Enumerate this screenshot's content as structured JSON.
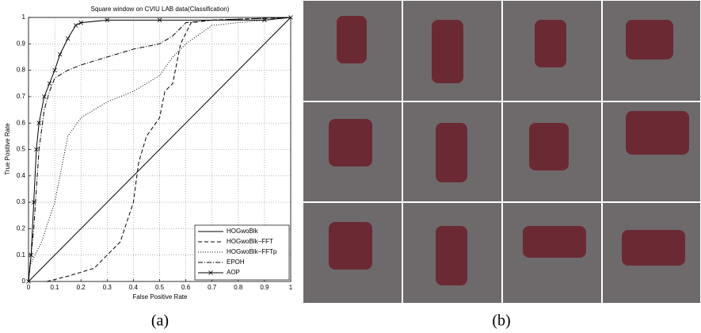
{
  "chart_data": {
    "type": "line",
    "title": "Square window on CVIU LAB data(Classification)",
    "x_label": "False Positive Rate",
    "y_label": "True Positive Rate",
    "xlim": [
      0,
      1
    ],
    "ylim": [
      0,
      1
    ],
    "xticks": [
      0,
      0.1,
      0.2,
      0.3,
      0.4,
      0.5,
      0.6,
      0.7,
      0.8,
      0.9,
      1
    ],
    "yticks": [
      0,
      0.1,
      0.2,
      0.3,
      0.4,
      0.5,
      0.6,
      0.7,
      0.8,
      0.9,
      1
    ],
    "grid": true,
    "legend": "lower right",
    "series": [
      {
        "name": "HOGwoBlk",
        "color": "#000000",
        "dash": "none",
        "marker": "none",
        "x": [
          0,
          1
        ],
        "values": [
          0,
          1
        ]
      },
      {
        "name": "HOGwoBlk−FFT",
        "color": "#000000",
        "dash": "5,3",
        "marker": "none",
        "x": [
          0.07,
          0.15,
          0.25,
          0.35,
          0.4,
          0.42,
          0.45,
          0.5,
          0.52,
          0.55,
          0.58,
          0.62,
          0.7,
          1
        ],
        "values": [
          0,
          0.02,
          0.05,
          0.15,
          0.3,
          0.45,
          0.55,
          0.62,
          0.72,
          0.75,
          0.9,
          0.98,
          0.99,
          1
        ]
      },
      {
        "name": "HOGwoBlk−FFTp",
        "color": "#000000",
        "dash": "1,2",
        "marker": "none",
        "x": [
          0,
          0.05,
          0.1,
          0.12,
          0.15,
          0.2,
          0.3,
          0.4,
          0.5,
          0.55,
          0.6,
          0.7,
          1
        ],
        "values": [
          0.05,
          0.15,
          0.3,
          0.4,
          0.55,
          0.62,
          0.68,
          0.72,
          0.78,
          0.85,
          0.9,
          0.97,
          1
        ]
      },
      {
        "name": "EPOH",
        "color": "#000000",
        "dash": "6,2,1,2",
        "marker": "none",
        "x": [
          0,
          0.02,
          0.04,
          0.06,
          0.08,
          0.1,
          0.15,
          0.2,
          0.3,
          0.4,
          0.5,
          0.55,
          0.6,
          0.7,
          1
        ],
        "values": [
          0,
          0.2,
          0.5,
          0.65,
          0.72,
          0.77,
          0.8,
          0.82,
          0.85,
          0.88,
          0.9,
          0.93,
          0.98,
          0.99,
          1
        ]
      },
      {
        "name": "AOP",
        "color": "#000000",
        "dash": "none",
        "marker": "x",
        "x": [
          0,
          0.01,
          0.02,
          0.03,
          0.04,
          0.06,
          0.08,
          0.1,
          0.12,
          0.15,
          0.18,
          0.2,
          0.3,
          0.5,
          0.9,
          1
        ],
        "values": [
          0,
          0.1,
          0.3,
          0.5,
          0.6,
          0.7,
          0.75,
          0.8,
          0.86,
          0.92,
          0.97,
          0.98,
          0.99,
          0.99,
          0.99,
          1
        ]
      }
    ]
  },
  "captions": [
    "(a)",
    "(b)"
  ]
}
